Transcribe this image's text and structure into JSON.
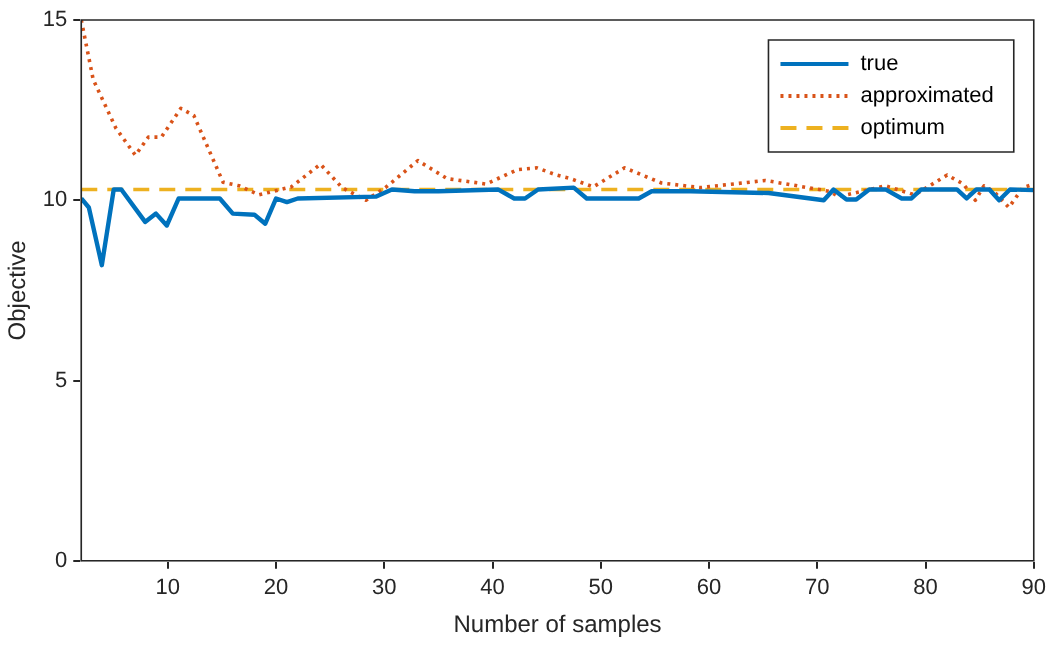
{
  "chart_data": {
    "type": "line",
    "xlabel": "Number of samples",
    "ylabel": "Objective",
    "xlim": [
      2,
      90
    ],
    "xticks": [
      10,
      20,
      30,
      40,
      50,
      60,
      70,
      80,
      90
    ],
    "ylim": [
      0,
      15
    ],
    "yticks": [
      0,
      5,
      10,
      15
    ],
    "grid": false,
    "legend": "top right",
    "marker": "none",
    "series": [
      {
        "name": "true",
        "color": "#0072bd",
        "line_style": "solid",
        "x": [
          2,
          2.7,
          3.9,
          5,
          5.7,
          7.9,
          8.9,
          9.9,
          11,
          14.8,
          16,
          18,
          19,
          20,
          21,
          22,
          29.2,
          30.7,
          32.8,
          35,
          40.5,
          42,
          43,
          44.2,
          47.5,
          48.7,
          53.5,
          54.7,
          58.3,
          65.5,
          70.6,
          71.5,
          72.7,
          73.6,
          74.8,
          76.3,
          77.8,
          78.7,
          79.6,
          82.9,
          83.8,
          84.7,
          85.9,
          86.8,
          87.8,
          90
        ],
        "values": [
          10.05,
          9.8,
          8.2,
          10.3,
          10.3,
          9.4,
          9.63,
          9.3,
          10.05,
          10.05,
          9.63,
          9.6,
          9.35,
          10.05,
          9.95,
          10.05,
          10.1,
          10.3,
          10.25,
          10.25,
          10.3,
          10.05,
          10.05,
          10.3,
          10.35,
          10.05,
          10.05,
          10.25,
          10.25,
          10.2,
          10.0,
          10.3,
          10.02,
          10.02,
          10.3,
          10.3,
          10.05,
          10.05,
          10.3,
          10.3,
          10.05,
          10.3,
          10.3,
          10.0,
          10.3,
          10.28
        ]
      },
      {
        "name": "approximated",
        "color": "#d95319",
        "line_style": "dotted",
        "x": [
          2,
          3.1,
          5.2,
          7,
          8.2,
          9.4,
          11.2,
          12.4,
          15.1,
          16.6,
          18.4,
          21.4,
          24.1,
          26.1,
          28.3,
          30.1,
          33.1,
          35.8,
          39.4,
          42.3,
          44.1,
          45.9,
          47.2,
          49.3,
          52.2,
          55.6,
          59.2,
          65.2,
          71.1,
          72,
          76.3,
          79,
          82,
          83.5,
          84.6,
          85.4,
          86.3,
          87.7,
          89,
          90
        ],
        "values": [
          15,
          13.35,
          12,
          11.25,
          11.75,
          11.75,
          12.55,
          12.35,
          10.5,
          10.4,
          10.15,
          10.37,
          11,
          10.35,
          10,
          10.35,
          11.1,
          10.6,
          10.45,
          10.85,
          10.9,
          10.7,
          10.6,
          10.37,
          10.9,
          10.48,
          10.35,
          10.55,
          10.25,
          10.1,
          10.4,
          10.15,
          10.7,
          10.45,
          10,
          10.4,
          10.25,
          9.8,
          10.35,
          10.45
        ]
      },
      {
        "name": "optimum",
        "color": "#edb120",
        "line_style": "dashed",
        "x": [
          2,
          90
        ],
        "values": [
          10.3,
          10.3
        ]
      }
    ]
  }
}
